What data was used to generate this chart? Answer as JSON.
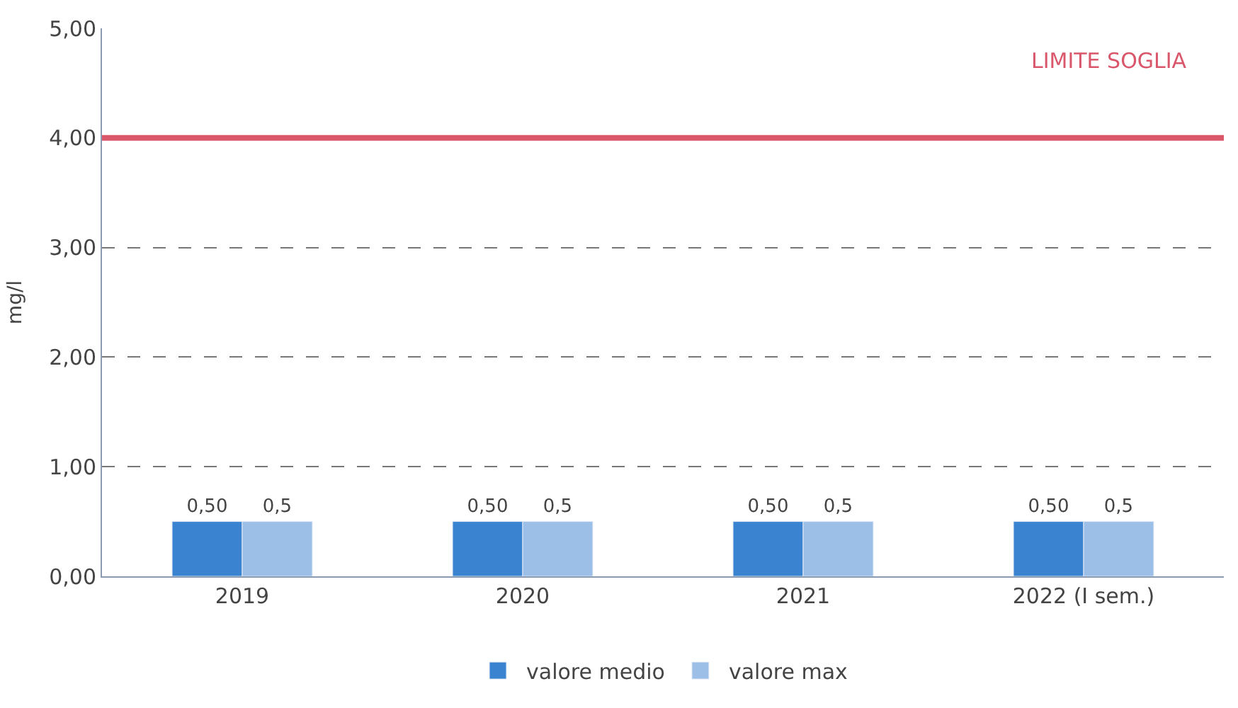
{
  "chart_data": {
    "type": "bar",
    "ylabel": "mg/l",
    "categories": [
      "2019",
      "2020",
      "2021",
      "2022 (I sem.)"
    ],
    "series": [
      {
        "name": "valore medio",
        "color": "#3a83d0",
        "values": [
          0.5,
          0.5,
          0.5,
          0.5
        ],
        "value_labels": [
          "0,50",
          "0,50",
          "0,50",
          "0,50"
        ]
      },
      {
        "name": "valore max",
        "color": "#9cbfe8",
        "values": [
          0.5,
          0.5,
          0.5,
          0.5
        ],
        "value_labels": [
          "0,5",
          "0,5",
          "0,5",
          "0,5"
        ]
      }
    ],
    "ylim": [
      0,
      5
    ],
    "yticks": [
      {
        "value": 0,
        "label": "0,00"
      },
      {
        "value": 1,
        "label": "1,00"
      },
      {
        "value": 2,
        "label": "2,00"
      },
      {
        "value": 3,
        "label": "3,00"
      },
      {
        "value": 4,
        "label": "4,00"
      },
      {
        "value": 5,
        "label": "5,00"
      }
    ],
    "ref_lines": [
      {
        "axis": "y",
        "value": 4,
        "label": "LIMITE SOGLIA",
        "color": "#d9566b",
        "line_style": "solid"
      }
    ],
    "grid": "y",
    "legend": "bottom"
  }
}
